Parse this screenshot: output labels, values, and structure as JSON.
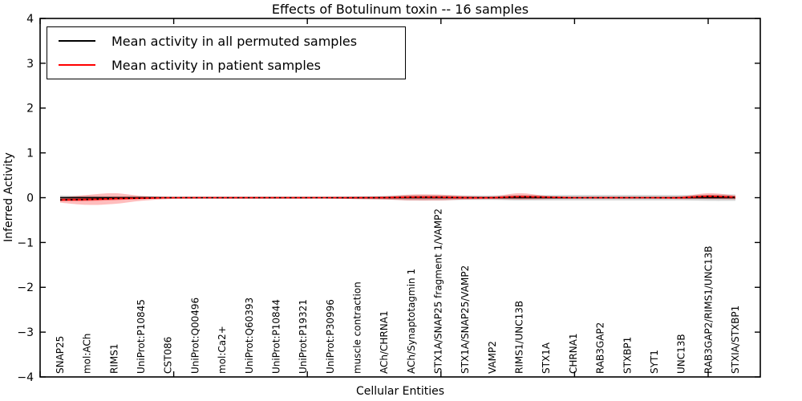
{
  "chart_data": {
    "type": "line",
    "title": "Effects of Botulinum toxin -- 16 samples",
    "xlabel": "Cellular Entities",
    "ylabel": "Inferred Activity",
    "ylim": [
      -4,
      4
    ],
    "ytick_values": [
      4,
      3,
      2,
      1,
      0,
      -1,
      -2,
      -3,
      -4
    ],
    "ytick_labels": [
      "4",
      "3",
      "2",
      "1",
      "0",
      "−1",
      "−2",
      "−3",
      "−4"
    ],
    "grid": false,
    "legend_position": "upper left",
    "categories": [
      "SNAP25",
      "mol:ACh",
      "RIMS1",
      "UniProt:P10845",
      "CST086",
      "UniProt:Q00496",
      "mol:Ca2+",
      "UniProt:Q60393",
      "UniProt:P10844",
      "UniProt:P19321",
      "UniProt:P30996",
      "muscle contraction",
      "ACh/CHRNA1",
      "ACh/Synaptotagmin 1",
      "STX1A/SNAP25 fragment 1/VAMP2",
      "STX1A/SNAP25/VAMP2",
      "VAMP2",
      "RIMS1/UNC13B",
      "STX1A",
      "CHRNA1",
      "RAB3GAP2",
      "STXBP1",
      "SYT1",
      "UNC13B",
      "RAB3GAP2/RIMS1/UNC13B",
      "STXIA/STXBP1"
    ],
    "series": [
      {
        "name": "Mean activity in all permuted samples",
        "color": "#000000",
        "band_color": "#888888",
        "band_opacity": 0.35,
        "values": [
          0,
          0,
          0,
          0,
          0,
          0,
          0,
          0,
          0,
          0,
          0,
          0,
          0,
          0,
          0,
          0,
          0,
          0,
          0,
          0,
          0,
          0,
          0,
          0,
          0,
          0
        ],
        "band_upper": [
          0.05,
          0.04,
          0.03,
          0.03,
          0.02,
          0.02,
          0.02,
          0.02,
          0.02,
          0.02,
          0.02,
          0.03,
          0.04,
          0.06,
          0.06,
          0.05,
          0.05,
          0.06,
          0.06,
          0.06,
          0.06,
          0.06,
          0.06,
          0.06,
          0.07,
          0.07
        ],
        "band_lower": [
          -0.05,
          -0.04,
          -0.03,
          -0.03,
          -0.02,
          -0.02,
          -0.02,
          -0.02,
          -0.02,
          -0.02,
          -0.02,
          -0.03,
          -0.04,
          -0.06,
          -0.06,
          -0.05,
          -0.05,
          -0.06,
          -0.06,
          -0.06,
          -0.06,
          -0.06,
          -0.06,
          -0.06,
          -0.07,
          -0.07
        ]
      },
      {
        "name": "Mean activity in patient samples",
        "color": "#ff0000",
        "band_color": "#ff0000",
        "band_opacity": 0.26,
        "values": [
          -0.05,
          -0.04,
          -0.02,
          -0.01,
          0,
          0,
          0,
          0,
          0,
          0,
          0,
          0,
          0,
          0.01,
          0.01,
          0,
          0,
          0.02,
          0.01,
          0,
          0,
          0,
          0,
          0,
          0.03,
          0.01
        ],
        "band_upper": [
          0.0,
          0.06,
          0.1,
          0.04,
          0.02,
          0.02,
          0.02,
          0.02,
          0.02,
          0.02,
          0.02,
          0.02,
          0.03,
          0.07,
          0.07,
          0.04,
          0.03,
          0.1,
          0.04,
          0.02,
          0.02,
          0.02,
          0.02,
          0.03,
          0.1,
          0.05
        ],
        "band_lower": [
          -0.11,
          -0.16,
          -0.14,
          -0.07,
          -0.03,
          -0.02,
          -0.02,
          -0.02,
          -0.02,
          -0.02,
          -0.02,
          -0.03,
          -0.04,
          -0.06,
          -0.06,
          -0.04,
          -0.03,
          -0.04,
          -0.03,
          -0.02,
          -0.02,
          -0.02,
          -0.02,
          -0.03,
          -0.03,
          -0.04
        ]
      }
    ]
  }
}
